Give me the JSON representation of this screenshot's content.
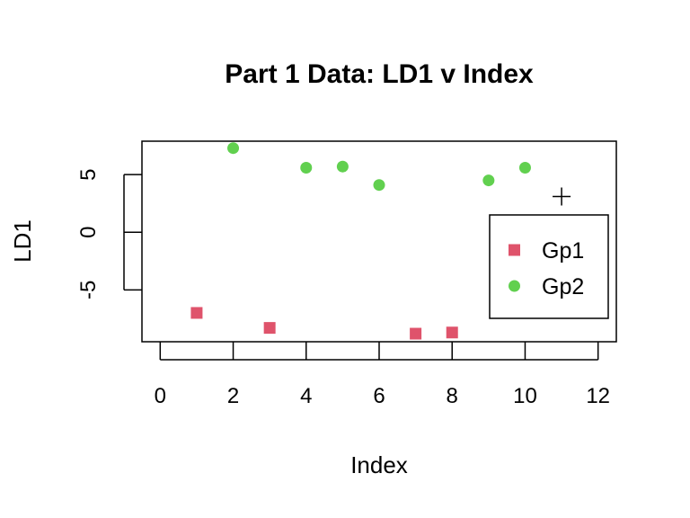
{
  "chart_data": {
    "type": "scatter",
    "title": "Part 1 Data: LD1 v Index",
    "xlabel": "Index",
    "ylabel": "LD1",
    "xlim": [
      -0.5,
      12.5
    ],
    "ylim": [
      -9.5,
      7.9
    ],
    "xticks": [
      0,
      2,
      4,
      6,
      8,
      10,
      12
    ],
    "yticks": [
      -5,
      0,
      5
    ],
    "grid": false,
    "legend_position": "right",
    "series": [
      {
        "name": "Gp1",
        "color": "#df536b",
        "marker": "square",
        "points": [
          {
            "x": 1,
            "y": -7.0
          },
          {
            "x": 3,
            "y": -8.3
          },
          {
            "x": 7,
            "y": -8.8
          },
          {
            "x": 8,
            "y": -8.7
          }
        ]
      },
      {
        "name": "Gp2",
        "color": "#61d04f",
        "marker": "circle",
        "points": [
          {
            "x": 2,
            "y": 7.3
          },
          {
            "x": 4,
            "y": 5.6
          },
          {
            "x": 5,
            "y": 5.7
          },
          {
            "x": 6,
            "y": 4.1
          },
          {
            "x": 9,
            "y": 4.5
          },
          {
            "x": 10,
            "y": 5.6
          }
        ]
      }
    ],
    "annotations": [
      {
        "marker": "plus",
        "color": "#000000",
        "x": 11,
        "y": 3.1
      }
    ]
  }
}
